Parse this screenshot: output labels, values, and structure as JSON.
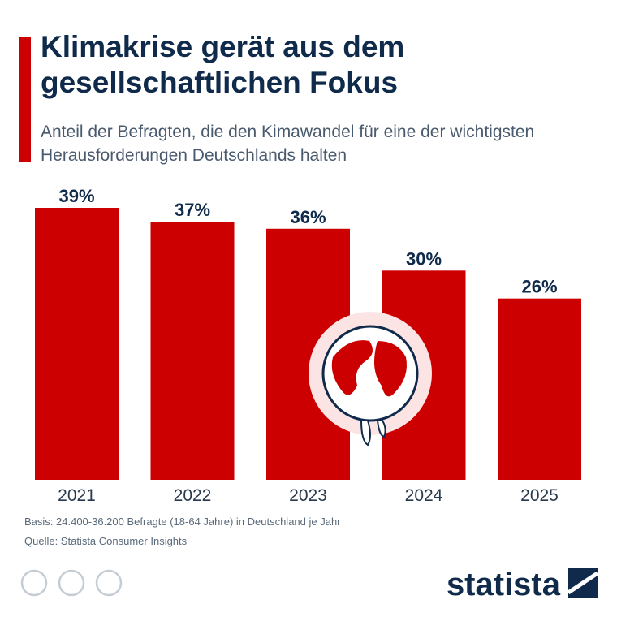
{
  "chart_data": {
    "type": "bar",
    "title": "Klimakrise gerät aus dem gesellschaftlichen Fokus",
    "subtitle": "Anteil der Befragten, die den Kimawandel für eine der wichtigsten Herausforderungen Deutschlands halten",
    "categories": [
      "2021",
      "2022",
      "2023",
      "2024",
      "2025"
    ],
    "values": [
      39,
      37,
      36,
      30,
      26
    ],
    "value_labels": [
      "39%",
      "37%",
      "36%",
      "30%",
      "26%"
    ],
    "color": "#cc0000",
    "note": "Basis: 24.400-36.200 Befragte (18-64 Jahre) in Deutschland je Jahr",
    "source": "Quelle: Statista Consumer Insights",
    "brand": "statista"
  }
}
